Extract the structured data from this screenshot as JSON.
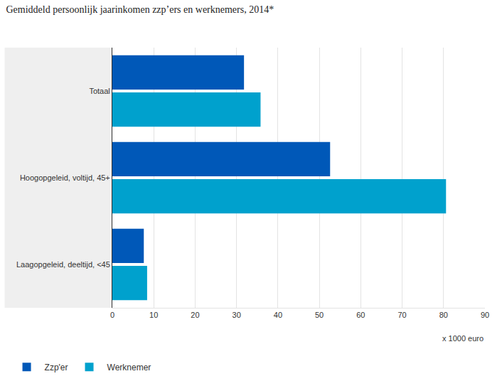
{
  "chart_data": {
    "type": "bar",
    "orientation": "horizontal",
    "title": "Gemiddeld persoonlijk jaarinkomen zzp’ers en werknemers, 2014*",
    "x_label": "x 1000 euro",
    "categories": [
      "Totaal",
      "Hoogopgeleid, voltijd, 45+",
      "Laagopgeleid, deeltijd, <45"
    ],
    "series": [
      {
        "name": "Zzp'er",
        "color": "#0058b8",
        "values": [
          31.8,
          52.6,
          7.6
        ]
      },
      {
        "name": "Werknemer",
        "color": "#00a1cd",
        "values": [
          35.8,
          80.6,
          8.4
        ]
      }
    ],
    "xlim": [
      0,
      90
    ],
    "xticks": [
      0,
      10,
      20,
      30,
      40,
      50,
      60,
      70,
      80,
      90
    ],
    "grid": true,
    "legend": "bottom left"
  }
}
